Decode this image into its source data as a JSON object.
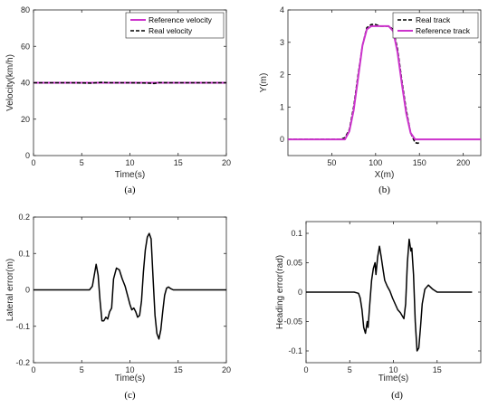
{
  "chart_data": [
    {
      "type": "line",
      "caption": "(a)",
      "xlabel": "Time(s)",
      "ylabel": "Velocity(km/h)",
      "xlim": [
        0,
        20
      ],
      "ylim": [
        0,
        80
      ],
      "xticks": [
        0,
        5,
        10,
        15,
        20
      ],
      "yticks": [
        0,
        20,
        40,
        60,
        80
      ],
      "legend_position": "top-right",
      "series": [
        {
          "name": "Reference velocity",
          "color": "#cc33cc",
          "style": "solid",
          "x": [
            0,
            20
          ],
          "y": [
            40,
            40
          ]
        },
        {
          "name": "Real velocity",
          "color": "#000000",
          "style": "dashed",
          "x": [
            0,
            2,
            4,
            6,
            7,
            8,
            10,
            12,
            12.5,
            13,
            14,
            16,
            18,
            20
          ],
          "y": [
            40,
            40,
            40,
            39.8,
            40.2,
            40,
            40,
            39.8,
            39.6,
            40.1,
            40,
            40,
            40,
            40
          ]
        }
      ]
    },
    {
      "type": "line",
      "caption": "(b)",
      "xlabel": "X(m)",
      "ylabel": "Y(m)",
      "xlim": [
        0,
        220
      ],
      "ylim": [
        -0.5,
        4
      ],
      "xticks": [
        50,
        100,
        150,
        200
      ],
      "yticks": [
        0,
        1,
        2,
        3,
        4
      ],
      "legend_position": "top-right",
      "series": [
        {
          "name": "Real track",
          "color": "#000000",
          "style": "dashed",
          "x": [
            0,
            60,
            65,
            70,
            75,
            80,
            85,
            90,
            95,
            100,
            105,
            110,
            115,
            120,
            125,
            130,
            135,
            140,
            145,
            148,
            150
          ],
          "y": [
            0,
            0,
            0.05,
            0.3,
            1.0,
            2.0,
            2.9,
            3.45,
            3.55,
            3.55,
            3.5,
            3.5,
            3.5,
            3.4,
            2.8,
            1.8,
            0.9,
            0.2,
            -0.1,
            -0.12,
            -0.1
          ]
        },
        {
          "name": "Reference track",
          "color": "#cc33cc",
          "style": "solid",
          "x": [
            0,
            65,
            70,
            75,
            80,
            85,
            90,
            95,
            115,
            120,
            125,
            130,
            135,
            140,
            145,
            220
          ],
          "y": [
            0,
            0,
            0.25,
            0.9,
            1.9,
            2.9,
            3.4,
            3.5,
            3.5,
            3.35,
            2.7,
            1.7,
            0.8,
            0.2,
            0,
            0
          ]
        }
      ]
    },
    {
      "type": "line",
      "caption": "(c)",
      "xlabel": "Time(s)",
      "ylabel": "Lateral error(m)",
      "xlim": [
        0,
        20
      ],
      "ylim": [
        -0.2,
        0.2
      ],
      "xticks": [
        0,
        5,
        10,
        15,
        20
      ],
      "yticks": [
        -0.2,
        -0.1,
        0,
        0.1,
        0.2
      ],
      "series": [
        {
          "color": "#000000",
          "style": "solid",
          "x": [
            0,
            5.8,
            6.1,
            6.3,
            6.5,
            6.7,
            6.9,
            7.1,
            7.3,
            7.5,
            7.7,
            7.9,
            8.1,
            8.3,
            8.6,
            8.9,
            9.2,
            9.5,
            9.8,
            10.0,
            10.2,
            10.4,
            10.6,
            10.8,
            11.0,
            11.2,
            11.4,
            11.6,
            11.8,
            12.0,
            12.2,
            12.4,
            12.6,
            12.8,
            13.0,
            13.2,
            13.4,
            13.6,
            13.8,
            14.0,
            14.2,
            14.5,
            15,
            20
          ],
          "y": [
            0,
            0,
            0.01,
            0.04,
            0.07,
            0.04,
            -0.03,
            -0.085,
            -0.085,
            -0.075,
            -0.08,
            -0.06,
            -0.05,
            0.03,
            0.06,
            0.055,
            0.03,
            0.01,
            -0.02,
            -0.04,
            -0.055,
            -0.05,
            -0.06,
            -0.075,
            -0.07,
            -0.03,
            0.05,
            0.11,
            0.145,
            0.155,
            0.14,
            0.03,
            -0.07,
            -0.12,
            -0.135,
            -0.11,
            -0.06,
            -0.015,
            0.005,
            0.008,
            0.004,
            0,
            0,
            0
          ]
        }
      ]
    },
    {
      "type": "line",
      "caption": "(d)",
      "xlabel": "Time(s)",
      "ylabel": "Heading error(rad)",
      "xlim": [
        0,
        20
      ],
      "ylim": [
        -0.12,
        0.12
      ],
      "xticks": [
        0,
        5,
        10,
        15
      ],
      "yticks": [
        -0.1,
        -0.05,
        0,
        0.05,
        0.1
      ],
      "series": [
        {
          "color": "#000000",
          "style": "solid",
          "x": [
            0,
            5.5,
            6.0,
            6.2,
            6.4,
            6.6,
            6.8,
            7.0,
            7.1,
            7.3,
            7.5,
            7.7,
            7.9,
            8.0,
            8.2,
            8.4,
            8.6,
            8.8,
            9.0,
            9.3,
            9.6,
            9.9,
            10.2,
            10.5,
            10.8,
            11.0,
            11.2,
            11.4,
            11.6,
            11.8,
            12.0,
            12.1,
            12.3,
            12.5,
            12.7,
            12.9,
            13.1,
            13.3,
            13.6,
            14.0,
            14.5,
            15,
            19
          ],
          "y": [
            0,
            0,
            -0.002,
            -0.01,
            -0.03,
            -0.06,
            -0.07,
            -0.05,
            -0.06,
            -0.02,
            0.02,
            0.04,
            0.05,
            0.03,
            0.06,
            0.078,
            0.06,
            0.04,
            0.02,
            0.01,
            0.002,
            -0.01,
            -0.02,
            -0.03,
            -0.035,
            -0.04,
            -0.045,
            -0.02,
            0.05,
            0.09,
            0.07,
            0.075,
            0.03,
            -0.05,
            -0.1,
            -0.095,
            -0.06,
            -0.02,
            0.005,
            0.012,
            0.005,
            0,
            0
          ]
        }
      ]
    }
  ]
}
